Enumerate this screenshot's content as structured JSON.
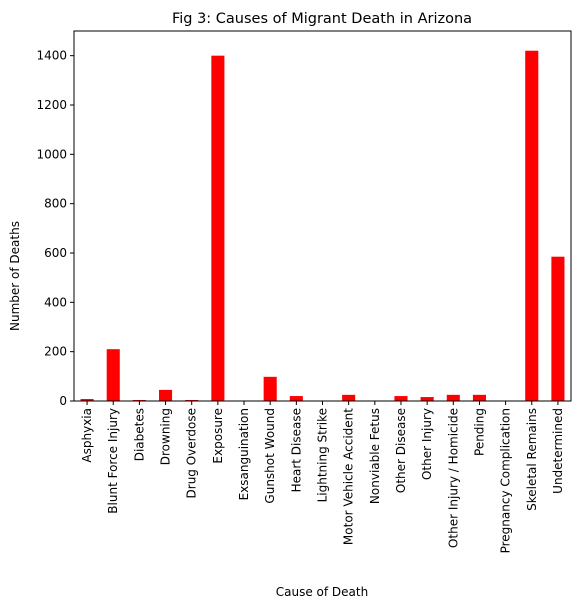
{
  "chart_data": {
    "type": "bar",
    "title": "Fig 3: Causes of Migrant Death in Arizona",
    "xlabel": "Cause of Death",
    "ylabel": "Number of Deaths",
    "ylim": [
      0,
      1500
    ],
    "yticks": [
      0,
      200,
      400,
      600,
      800,
      1000,
      1200,
      1400
    ],
    "grid": false,
    "legend": "none",
    "bar_color": "#ff0000",
    "categories": [
      "Asphyxia",
      "Blunt Force Injury",
      "Diabetes",
      "Drowning",
      "Drug Overdose",
      "Exposure",
      "Exsanguination",
      "Gunshot Wound",
      "Heart Disease",
      "Lightning Strike",
      "Motor Vehicle Accident",
      "Nonviable Fetus",
      "Other Disease",
      "Other Injury",
      "Other Injury / Homicide",
      "Pending",
      "Pregnancy Complication",
      "Skeletal Remains",
      "Undetermined"
    ],
    "values": [
      8,
      210,
      4,
      45,
      4,
      1400,
      1,
      98,
      20,
      1,
      25,
      1,
      20,
      16,
      25,
      25,
      1,
      1420,
      585
    ]
  }
}
